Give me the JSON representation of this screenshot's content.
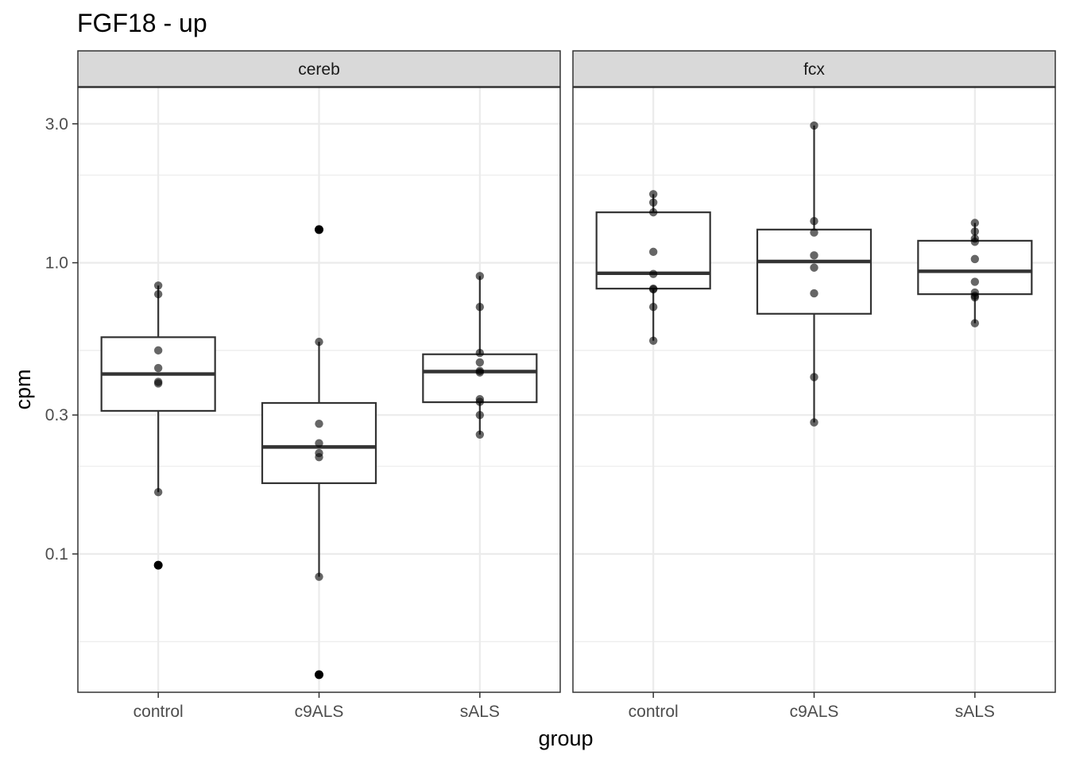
{
  "chart_data": {
    "type": "boxplot",
    "title": "FGF18 - up",
    "xlabel": "group",
    "ylabel": "cpm",
    "y_scale": "log10",
    "ylim": [
      0.0335,
      4.0
    ],
    "y_ticks": [
      {
        "value": 0.1,
        "label": "0.1"
      },
      {
        "value": 0.3,
        "label": "0.3"
      },
      {
        "value": 1.0,
        "label": "1.0"
      },
      {
        "value": 3.0,
        "label": "3.0"
      }
    ],
    "y_minor_gridlines": [
      0.05,
      0.2,
      0.5,
      2.0
    ],
    "categories": [
      "control",
      "c9ALS",
      "sALS"
    ],
    "grid": true,
    "legend": "none",
    "colors": {
      "box_line": "#333333",
      "point": "#000000",
      "strip_fill": "#d9d9d9",
      "grid": "#ebebeb",
      "panel_border": "#333333"
    },
    "panels": [
      {
        "name": "cereb",
        "groups": [
          {
            "category": "control",
            "box": {
              "q1": 0.31,
              "median": 0.415,
              "q3": 0.555,
              "whisker_low": 0.163,
              "whisker_high": 0.835
            },
            "points": [
              0.835,
              0.78,
              0.5,
              0.435,
              0.39,
              0.385,
              0.163,
              0.0915
            ],
            "outliers": [
              0.0915
            ]
          },
          {
            "category": "c9ALS",
            "box": {
              "q1": 0.175,
              "median": 0.233,
              "q3": 0.33,
              "whisker_low": 0.0835,
              "whisker_high": 0.535
            },
            "points": [
              1.3,
              0.535,
              0.28,
              0.24,
              0.222,
              0.215,
              0.0835,
              0.0385
            ],
            "outliers": [
              1.3,
              0.0385
            ]
          },
          {
            "category": "sALS",
            "box": {
              "q1": 0.332,
              "median": 0.423,
              "q3": 0.485,
              "whisker_low": 0.257,
              "whisker_high": 0.9
            },
            "points": [
              0.9,
              0.705,
              0.49,
              0.455,
              0.425,
              0.42,
              0.34,
              0.333,
              0.3,
              0.257
            ],
            "outliers": []
          }
        ]
      },
      {
        "name": "fcx",
        "groups": [
          {
            "category": "control",
            "box": {
              "q1": 0.815,
              "median": 0.92,
              "q3": 1.49,
              "whisker_low": 0.54,
              "whisker_high": 1.72
            },
            "points": [
              1.72,
              1.61,
              1.49,
              1.09,
              0.915,
              0.815,
              0.81,
              0.705,
              0.54
            ],
            "outliers": []
          },
          {
            "category": "c9ALS",
            "box": {
              "q1": 0.668,
              "median": 1.01,
              "q3": 1.3,
              "whisker_low": 0.283,
              "whisker_high": 2.96
            },
            "points": [
              2.96,
              1.39,
              1.27,
              1.06,
              0.962,
              0.785,
              0.405,
              0.283
            ],
            "outliers": []
          },
          {
            "category": "sALS",
            "box": {
              "q1": 0.78,
              "median": 0.935,
              "q3": 1.19,
              "whisker_low": 0.62,
              "whisker_high": 1.37
            },
            "points": [
              1.37,
              1.28,
              1.21,
              1.18,
              1.03,
              0.86,
              0.79,
              0.77,
              0.76,
              0.62
            ],
            "outliers": []
          }
        ]
      }
    ]
  }
}
